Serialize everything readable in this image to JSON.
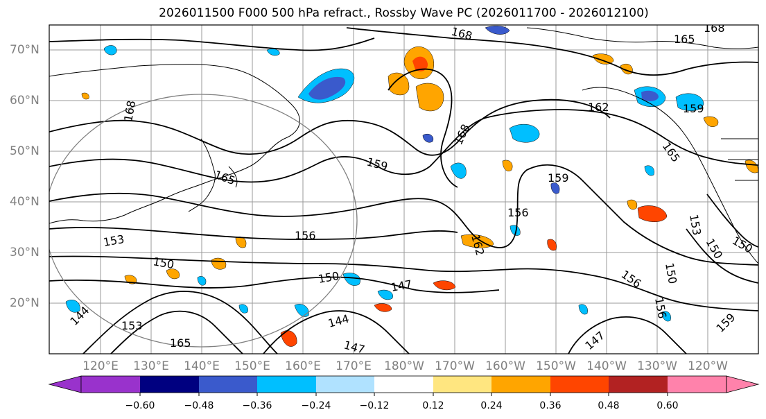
{
  "title": "2026011500 F000 500 hPa refract., Rossby Wave PC (2026011700 - 2026012100)",
  "lat_labels": [
    "70°N",
    "60°N",
    "50°N",
    "40°N",
    "30°N",
    "20°N"
  ],
  "lon_labels": [
    "120°E",
    "130°E",
    "140°E",
    "150°E",
    "160°E",
    "170°E",
    "180°W",
    "170°W",
    "160°W",
    "150°W",
    "140°W",
    "130°W",
    "120°W"
  ],
  "contour_labels": [
    "168",
    "168",
    "165",
    "168",
    "165",
    "168",
    "159",
    "159",
    "162",
    "159",
    "165",
    "156",
    "156",
    "162",
    "153",
    "153",
    "150",
    "150",
    "147",
    "150",
    "156",
    "150",
    "150",
    "144",
    "153",
    "165",
    "144",
    "147",
    "156",
    "147",
    "159"
  ],
  "colorbar": {
    "ticks": [
      "−0.60",
      "−0.48",
      "−0.36",
      "−0.24",
      "−0.12",
      "0.12",
      "0.24",
      "0.36",
      "0.48",
      "0.60"
    ],
    "colors": [
      "#9932cc",
      "#000080",
      "#3a5acc",
      "#00bfff",
      "#b0e2ff",
      "#ffffff",
      "#ffe680",
      "#ffa500",
      "#ff4500",
      "#b22222",
      "#ff82ab"
    ]
  },
  "colors": {
    "frame": "#000000",
    "grid": "#808080",
    "contour": "#000000",
    "circle": "#808080"
  }
}
